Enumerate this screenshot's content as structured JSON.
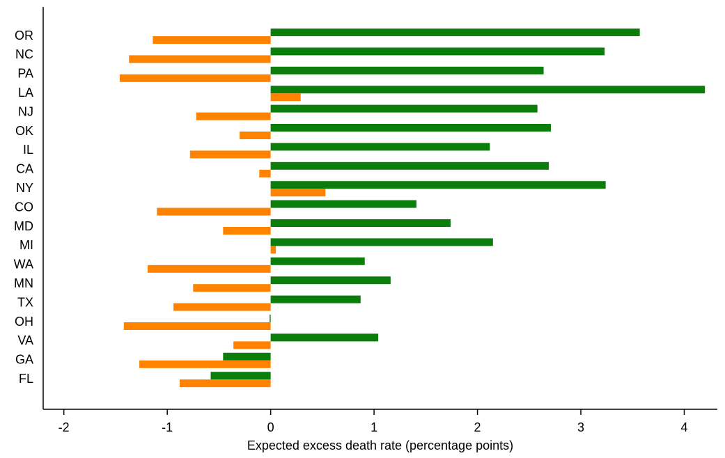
{
  "chart_data": {
    "type": "grouped-barh",
    "categories": [
      "OR",
      "NC",
      "PA",
      "LA",
      "NJ",
      "OK",
      "IL",
      "CA",
      "NY",
      "CO",
      "MD",
      "MI",
      "WA",
      "MN",
      "TX",
      "OH",
      "VA",
      "GA",
      "FL"
    ],
    "series": [
      {
        "color": "#0a7d0a",
        "values": [
          3.57,
          3.23,
          2.64,
          4.2,
          2.58,
          2.71,
          2.12,
          2.69,
          3.24,
          1.41,
          1.74,
          2.15,
          0.91,
          1.16,
          0.87,
          -0.01,
          1.04,
          -0.46,
          -0.58
        ]
      },
      {
        "color": "#ff8200",
        "values": [
          -1.14,
          -1.37,
          -1.46,
          0.29,
          -0.72,
          -0.3,
          -0.78,
          -0.11,
          0.53,
          -1.1,
          -0.46,
          0.05,
          -1.19,
          -0.75,
          -0.94,
          -1.42,
          -0.36,
          -1.27,
          -0.88
        ]
      }
    ],
    "xlabel": "Expected excess death rate (percentage points)",
    "xlim": [
      -2.2,
      4.32
    ],
    "xticks": [
      -2,
      -1,
      0,
      1,
      2,
      3,
      4
    ]
  }
}
